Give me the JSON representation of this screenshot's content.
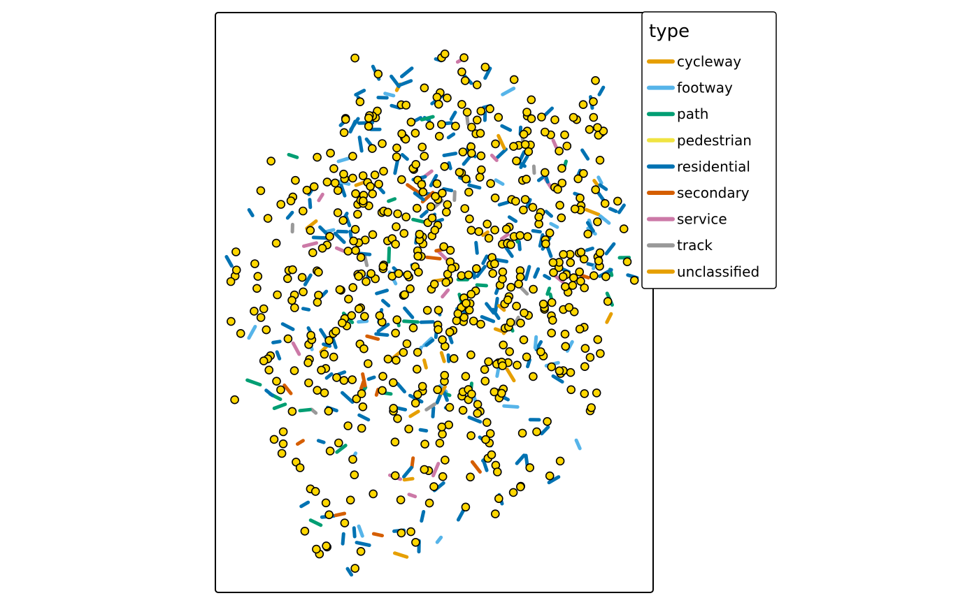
{
  "chart_data": {
    "type": "scatter",
    "legend": {
      "title": "type",
      "placement": "right",
      "entries": [
        {
          "label": "cycleway",
          "color": "#E69F00"
        },
        {
          "label": "footway",
          "color": "#56B4E9"
        },
        {
          "label": "path",
          "color": "#009E73"
        },
        {
          "label": "pedestrian",
          "color": "#F0E442"
        },
        {
          "label": "residential",
          "color": "#0072B2"
        },
        {
          "label": "secondary",
          "color": "#D55E00"
        },
        {
          "label": "service",
          "color": "#CC79A7"
        },
        {
          "label": "track",
          "color": "#999999"
        },
        {
          "label": "unclassified",
          "color": "#E69F00"
        }
      ]
    },
    "point_color": "#FFD700",
    "point_outline": "#000000",
    "axes": "none",
    "grid": false
  }
}
